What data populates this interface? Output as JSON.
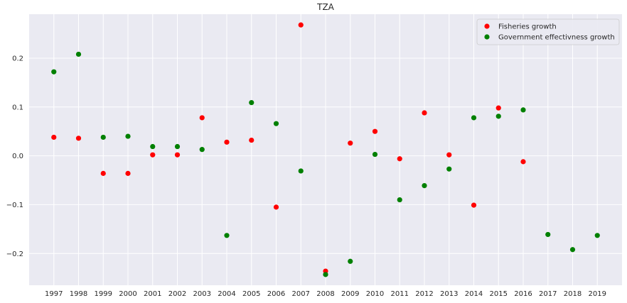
{
  "chart_data": {
    "type": "scatter",
    "title": "TZA",
    "xlabel": "",
    "ylabel": "",
    "x": [
      1997,
      1998,
      1999,
      2000,
      2001,
      2002,
      2003,
      2004,
      2005,
      2006,
      2007,
      2008,
      2009,
      2010,
      2011,
      2012,
      2013,
      2014,
      2015,
      2016,
      2017,
      2018,
      2019
    ],
    "xticks": [
      "1997",
      "1998",
      "1999",
      "2000",
      "2001",
      "2002",
      "2003",
      "2004",
      "2005",
      "2006",
      "2007",
      "2008",
      "2009",
      "2010",
      "2011",
      "2012",
      "2013",
      "2014",
      "2015",
      "2016",
      "2017",
      "2018",
      "2019"
    ],
    "ylim": [
      -0.265,
      0.29
    ],
    "yticks": [
      -0.2,
      -0.1,
      0.0,
      0.1,
      0.2
    ],
    "ytick_labels": [
      "−0.2",
      "−0.1",
      "0.0",
      "0.1",
      "0.2"
    ],
    "grid": true,
    "legend_position": "top-right",
    "series": [
      {
        "name": "Fisheries growth",
        "color": "#ff0000",
        "values": [
          0.038,
          0.036,
          -0.036,
          -0.036,
          0.002,
          0.002,
          0.078,
          0.028,
          0.032,
          -0.105,
          0.268,
          -0.236,
          0.026,
          0.05,
          -0.006,
          0.088,
          0.002,
          -0.101,
          0.098,
          -0.012,
          null,
          null,
          null
        ]
      },
      {
        "name": "Government effectivness growth",
        "color": "#008000",
        "values": [
          0.172,
          0.208,
          0.038,
          0.04,
          0.019,
          0.019,
          0.013,
          -0.163,
          0.109,
          0.066,
          -0.031,
          -0.243,
          -0.216,
          0.003,
          -0.09,
          -0.061,
          -0.027,
          0.078,
          0.081,
          0.094,
          -0.161,
          -0.192,
          -0.163
        ]
      }
    ]
  }
}
